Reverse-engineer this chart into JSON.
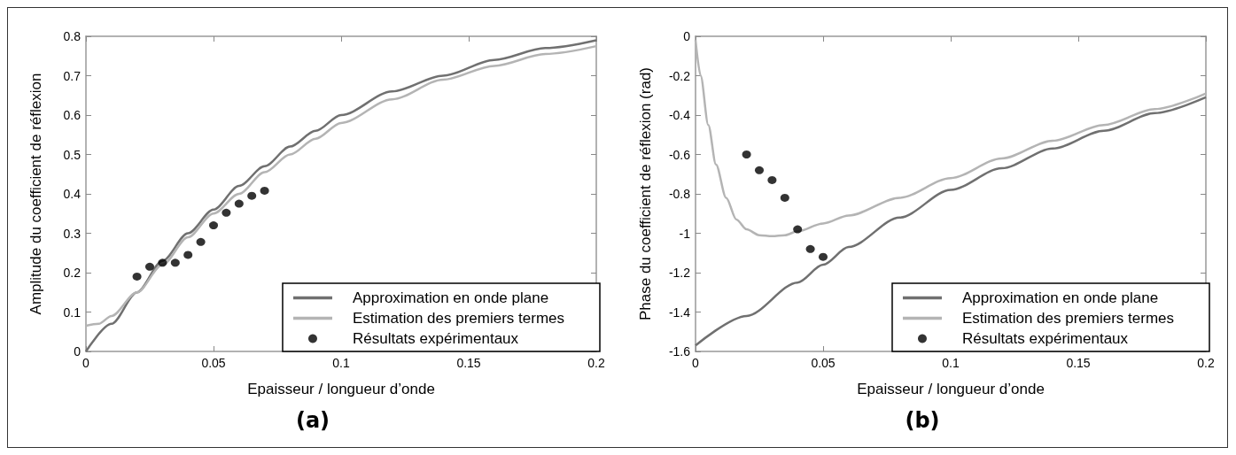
{
  "chart_data": [
    {
      "type": "line",
      "xlabel": "Epaisseur / longueur d’onde",
      "ylabel": "Amplitude du coefficient de réflexion",
      "annotations": [
        "(a)"
      ],
      "xlim": [
        0,
        0.2
      ],
      "xticks": [
        0,
        0.05,
        0.1,
        0.15,
        0.2
      ],
      "ylim": [
        0,
        0.8
      ],
      "yticks": [
        0,
        0.1,
        0.2,
        0.3,
        0.4,
        0.5,
        0.6,
        0.7,
        0.8
      ],
      "grid": false,
      "legend": "bottom right",
      "series": [
        {
          "name": "Approximation en onde plane",
          "color": "#707070",
          "x": [
            0,
            0.01,
            0.02,
            0.03,
            0.04,
            0.05,
            0.06,
            0.07,
            0.08,
            0.09,
            0.1,
            0.12,
            0.14,
            0.16,
            0.18,
            0.2
          ],
          "values": [
            0,
            0.07,
            0.15,
            0.23,
            0.3,
            0.36,
            0.42,
            0.47,
            0.52,
            0.56,
            0.6,
            0.66,
            0.7,
            0.74,
            0.77,
            0.79
          ]
        },
        {
          "name": "Estimation des premiers termes",
          "color": "#b4b4b4",
          "x": [
            0,
            0.005,
            0.01,
            0.02,
            0.03,
            0.04,
            0.05,
            0.06,
            0.07,
            0.08,
            0.09,
            0.1,
            0.12,
            0.14,
            0.16,
            0.18,
            0.2
          ],
          "values": [
            0.065,
            0.07,
            0.09,
            0.15,
            0.22,
            0.29,
            0.35,
            0.4,
            0.455,
            0.5,
            0.54,
            0.58,
            0.64,
            0.69,
            0.725,
            0.755,
            0.775
          ]
        },
        {
          "name": "Résultats expérimentaux",
          "type": "scatter",
          "color": "#000000",
          "x": [
            0.02,
            0.025,
            0.03,
            0.035,
            0.04,
            0.045,
            0.05,
            0.055,
            0.06,
            0.065,
            0.07
          ],
          "values": [
            0.19,
            0.215,
            0.225,
            0.225,
            0.245,
            0.278,
            0.32,
            0.352,
            0.375,
            0.395,
            0.408
          ]
        }
      ]
    },
    {
      "type": "line",
      "xlabel": "Epaisseur / longueur d’onde",
      "ylabel": "Phase du coefficient de réflexion (rad)",
      "annotations": [
        "(b)"
      ],
      "xlim": [
        0,
        0.2
      ],
      "xticks": [
        0,
        0.05,
        0.1,
        0.15,
        0.2
      ],
      "ylim": [
        -1.6,
        0
      ],
      "yticks": [
        -1.6,
        -1.4,
        -1.2,
        -1,
        -0.8,
        -0.6,
        -0.4,
        -0.2,
        0
      ],
      "grid": false,
      "legend": "bottom right",
      "series": [
        {
          "name": "Approximation en onde plane",
          "color": "#707070",
          "x": [
            0,
            0.02,
            0.04,
            0.05,
            0.06,
            0.08,
            0.1,
            0.12,
            0.14,
            0.16,
            0.18,
            0.2
          ],
          "values": [
            -1.57,
            -1.42,
            -1.25,
            -1.16,
            -1.07,
            -0.92,
            -0.78,
            -0.67,
            -0.57,
            -0.48,
            -0.39,
            -0.31
          ]
        },
        {
          "name": "Estimation des premiers termes",
          "color": "#b4b4b4",
          "x": [
            0,
            0.002,
            0.005,
            0.008,
            0.012,
            0.016,
            0.02,
            0.025,
            0.03,
            0.035,
            0.04,
            0.05,
            0.06,
            0.08,
            0.1,
            0.12,
            0.14,
            0.16,
            0.18,
            0.2
          ],
          "values": [
            -0.02,
            -0.2,
            -0.45,
            -0.65,
            -0.82,
            -0.93,
            -0.98,
            -1.01,
            -1.015,
            -1.01,
            -0.99,
            -0.95,
            -0.91,
            -0.82,
            -0.72,
            -0.62,
            -0.53,
            -0.45,
            -0.37,
            -0.29
          ]
        },
        {
          "name": "Résultats expérimentaux",
          "type": "scatter",
          "color": "#000000",
          "x": [
            0.02,
            0.025,
            0.03,
            0.035,
            0.04,
            0.045,
            0.05
          ],
          "values": [
            -0.6,
            -0.68,
            -0.73,
            -0.82,
            -0.98,
            -1.08,
            -1.12
          ]
        }
      ]
    }
  ]
}
